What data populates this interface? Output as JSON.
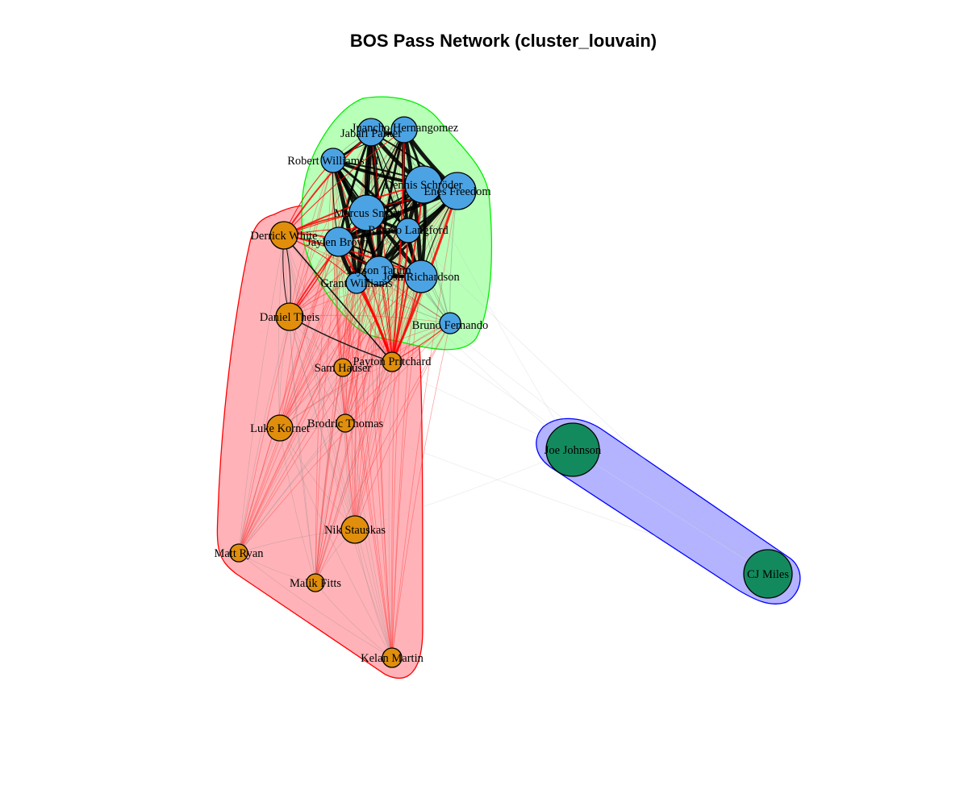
{
  "title": "BOS Pass Network (cluster_louvain)",
  "colors": {
    "cluster1_fill": "#ffb3b8",
    "cluster1_stroke": "#ff0000",
    "cluster2_fill": "#b8ffb8",
    "cluster2_stroke": "#00ee00",
    "cluster3_fill": "#b3b3ff",
    "cluster3_stroke": "#0000ff",
    "node_orange": "#e08e0b",
    "node_blue": "#4ba3e3",
    "node_green": "#138a5e"
  },
  "clusters": [
    {
      "id": "c1",
      "fill": "#ffb3b8",
      "stroke": "#ff0000"
    },
    {
      "id": "c2",
      "fill": "#b8ffb8",
      "stroke": "#00ee00"
    },
    {
      "id": "c3",
      "fill": "#b3b3ff",
      "stroke": "#0000ff"
    }
  ],
  "nodes": [
    {
      "id": "jh",
      "label": "Juancho Hernangomez",
      "cluster": 2,
      "color": "#4ba3e3"
    },
    {
      "id": "jp",
      "label": "Jabari Parker",
      "cluster": 2,
      "color": "#4ba3e3"
    },
    {
      "id": "rw",
      "label": "Robert Williams III",
      "cluster": 2,
      "color": "#4ba3e3"
    },
    {
      "id": "ds",
      "label": "Dennis Schröder",
      "cluster": 2,
      "color": "#4ba3e3"
    },
    {
      "id": "ef",
      "label": "Enes Freedom",
      "cluster": 2,
      "color": "#4ba3e3"
    },
    {
      "id": "ms",
      "label": "Marcus Smart",
      "cluster": 2,
      "color": "#4ba3e3"
    },
    {
      "id": "rl",
      "label": "Romeo Langford",
      "cluster": 2,
      "color": "#4ba3e3"
    },
    {
      "id": "jb",
      "label": "Jaylen Brown",
      "cluster": 2,
      "color": "#4ba3e3"
    },
    {
      "id": "jt",
      "label": "Jayson Tatum",
      "cluster": 2,
      "color": "#4ba3e3"
    },
    {
      "id": "jr",
      "label": "Josh Richardson",
      "cluster": 2,
      "color": "#4ba3e3"
    },
    {
      "id": "gw",
      "label": "Grant Williams",
      "cluster": 2,
      "color": "#4ba3e3"
    },
    {
      "id": "bf",
      "label": "Bruno Fernando",
      "cluster": 2,
      "color": "#4ba3e3"
    },
    {
      "id": "dw",
      "label": "Derrick White",
      "cluster": 1,
      "color": "#e08e0b"
    },
    {
      "id": "dt",
      "label": "Daniel Theis",
      "cluster": 1,
      "color": "#e08e0b"
    },
    {
      "id": "pp",
      "label": "Payton Pritchard",
      "cluster": 1,
      "color": "#e08e0b"
    },
    {
      "id": "sh",
      "label": "Sam Hauser",
      "cluster": 1,
      "color": "#e08e0b"
    },
    {
      "id": "lk",
      "label": "Luke Kornet",
      "cluster": 1,
      "color": "#e08e0b"
    },
    {
      "id": "bt",
      "label": "Brodric Thomas",
      "cluster": 1,
      "color": "#e08e0b"
    },
    {
      "id": "ns",
      "label": "Nik Stauskas",
      "cluster": 1,
      "color": "#e08e0b"
    },
    {
      "id": "mr",
      "label": "Matt Ryan",
      "cluster": 1,
      "color": "#e08e0b"
    },
    {
      "id": "mf",
      "label": "Malik Fitts",
      "cluster": 1,
      "color": "#e08e0b"
    },
    {
      "id": "km",
      "label": "Kelan Martin",
      "cluster": 1,
      "color": "#e08e0b"
    },
    {
      "id": "jj",
      "label": "Joe Johnson",
      "cluster": 3,
      "color": "#138a5e"
    },
    {
      "id": "cj",
      "label": "CJ Miles",
      "cluster": 3,
      "color": "#138a5e"
    }
  ]
}
